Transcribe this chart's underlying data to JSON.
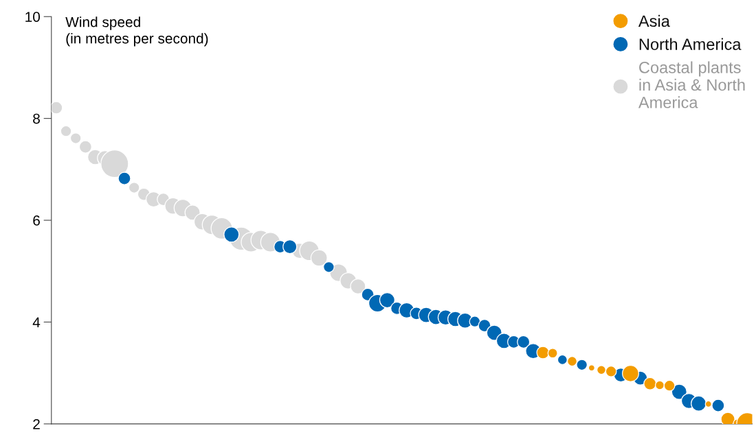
{
  "chart_data": {
    "type": "bubble",
    "ylabel": "Wind speed\n(in metres per second)",
    "categories": [
      null,
      null,
      null,
      null,
      null,
      null,
      null,
      null,
      null,
      null,
      null,
      null,
      null,
      null,
      null,
      null,
      null,
      null,
      null,
      null,
      null,
      null,
      null,
      null,
      null,
      null,
      null,
      null,
      null,
      null,
      null,
      null,
      null,
      null,
      null,
      null,
      null,
      null,
      null,
      null,
      null,
      null,
      null,
      null,
      null,
      null,
      null,
      null,
      null,
      null,
      null,
      null,
      null,
      null,
      null,
      null,
      null,
      null,
      null,
      null,
      null,
      null,
      null,
      null,
      null,
      null,
      null,
      null,
      null,
      null,
      null,
      null
    ],
    "series": [
      {
        "name": "Coastal plants\nin Asia & North\nAmerica",
        "color": "#d9d9d9",
        "values": [
          8.21,
          7.75,
          7.61,
          7.44,
          7.24,
          7.22,
          7.11,
          null,
          6.64,
          6.51,
          6.41,
          6.41,
          6.28,
          6.24,
          6.15,
          5.97,
          5.91,
          5.84,
          null,
          5.64,
          5.57,
          5.61,
          5.57,
          null,
          null,
          5.4,
          5.4,
          5.26,
          null,
          4.97,
          4.81,
          4.7,
          null,
          null,
          null,
          null,
          null,
          null,
          null,
          null,
          null,
          null,
          null,
          null,
          null,
          null,
          null,
          null,
          null,
          null,
          null,
          null,
          null,
          null,
          null,
          null,
          null,
          null,
          null,
          null,
          null,
          null,
          null,
          null,
          null,
          null,
          null,
          null,
          null,
          null,
          null,
          null
        ],
        "sizes": [
          0.2,
          0.15,
          0.15,
          0.2,
          0.3,
          0.3,
          1,
          null,
          0.15,
          0.2,
          0.3,
          0.2,
          0.35,
          0.4,
          0.3,
          0.35,
          0.5,
          0.6,
          null,
          0.7,
          0.5,
          0.5,
          0.5,
          null,
          null,
          0.3,
          0.5,
          0.35,
          null,
          0.4,
          0.35,
          0.3,
          null,
          null,
          null,
          null,
          null,
          null,
          null,
          null,
          null,
          null,
          null,
          null,
          null,
          null,
          null,
          null,
          null,
          null,
          null,
          null,
          null,
          null,
          null,
          null,
          null,
          null,
          null,
          null,
          null,
          null,
          null,
          null,
          null,
          null,
          null,
          null,
          null,
          null,
          null,
          null
        ]
      },
      {
        "name": "North America",
        "color": "#0068b4",
        "values": [
          null,
          null,
          null,
          null,
          null,
          null,
          null,
          6.82,
          null,
          null,
          null,
          null,
          null,
          null,
          null,
          null,
          null,
          null,
          5.72,
          null,
          null,
          null,
          null,
          5.48,
          5.48,
          null,
          null,
          null,
          5.08,
          null,
          null,
          null,
          4.54,
          4.37,
          4.43,
          4.27,
          4.23,
          4.17,
          4.14,
          4.1,
          4.09,
          4.06,
          4.03,
          4.01,
          3.93,
          3.79,
          3.63,
          3.61,
          3.61,
          3.43,
          null,
          null,
          3.26,
          null,
          3.16,
          null,
          null,
          null,
          2.96,
          null,
          2.9,
          null,
          null,
          null,
          2.63,
          2.45,
          2.4,
          null,
          2.36,
          null,
          null,
          null
        ],
        "sizes": [
          null,
          null,
          null,
          null,
          null,
          null,
          null,
          0.2,
          null,
          null,
          null,
          null,
          null,
          null,
          null,
          null,
          null,
          null,
          0.3,
          null,
          null,
          null,
          null,
          0.2,
          0.25,
          null,
          null,
          null,
          0.15,
          null,
          null,
          null,
          0.2,
          0.4,
          0.3,
          0.2,
          0.3,
          0.2,
          0.3,
          0.3,
          0.3,
          0.3,
          0.3,
          0.15,
          0.2,
          0.3,
          0.3,
          0.2,
          0.2,
          0.3,
          null,
          null,
          0.12,
          null,
          0.15,
          null,
          null,
          null,
          0.25,
          null,
          0.25,
          null,
          null,
          null,
          0.3,
          0.3,
          0.3,
          null,
          0.2,
          null,
          null,
          null
        ]
      },
      {
        "name": "Asia",
        "color": "#f39c00",
        "values": [
          null,
          null,
          null,
          null,
          null,
          null,
          null,
          null,
          null,
          null,
          null,
          null,
          null,
          null,
          null,
          null,
          null,
          null,
          null,
          null,
          null,
          null,
          null,
          null,
          null,
          null,
          null,
          null,
          null,
          null,
          null,
          null,
          null,
          null,
          null,
          null,
          null,
          null,
          null,
          null,
          null,
          null,
          null,
          null,
          null,
          null,
          null,
          null,
          null,
          null,
          3.4,
          3.39,
          null,
          3.23,
          null,
          3.1,
          3.06,
          3.03,
          null,
          2.99,
          null,
          2.79,
          2.76,
          2.75,
          null,
          null,
          null,
          2.39,
          null,
          2.09,
          2.01,
          2.01
        ],
        "sizes": [
          null,
          null,
          null,
          null,
          null,
          null,
          null,
          null,
          null,
          null,
          null,
          null,
          null,
          null,
          null,
          null,
          null,
          null,
          null,
          null,
          null,
          null,
          null,
          null,
          null,
          null,
          null,
          null,
          null,
          null,
          null,
          null,
          null,
          null,
          null,
          null,
          null,
          null,
          null,
          null,
          null,
          null,
          null,
          null,
          null,
          null,
          null,
          null,
          null,
          null,
          0.2,
          0.12,
          null,
          0.12,
          null,
          0.05,
          0.1,
          0.15,
          null,
          0.35,
          null,
          0.2,
          0.1,
          0.15,
          null,
          null,
          null,
          0.05,
          null,
          0.25,
          0.1,
          0.6
        ]
      }
    ],
    "ylim": [
      2,
      10
    ],
    "yticks": [
      2,
      4,
      6,
      8,
      10
    ],
    "tick_labels": "y",
    "legend": "top right",
    "grid": false
  }
}
